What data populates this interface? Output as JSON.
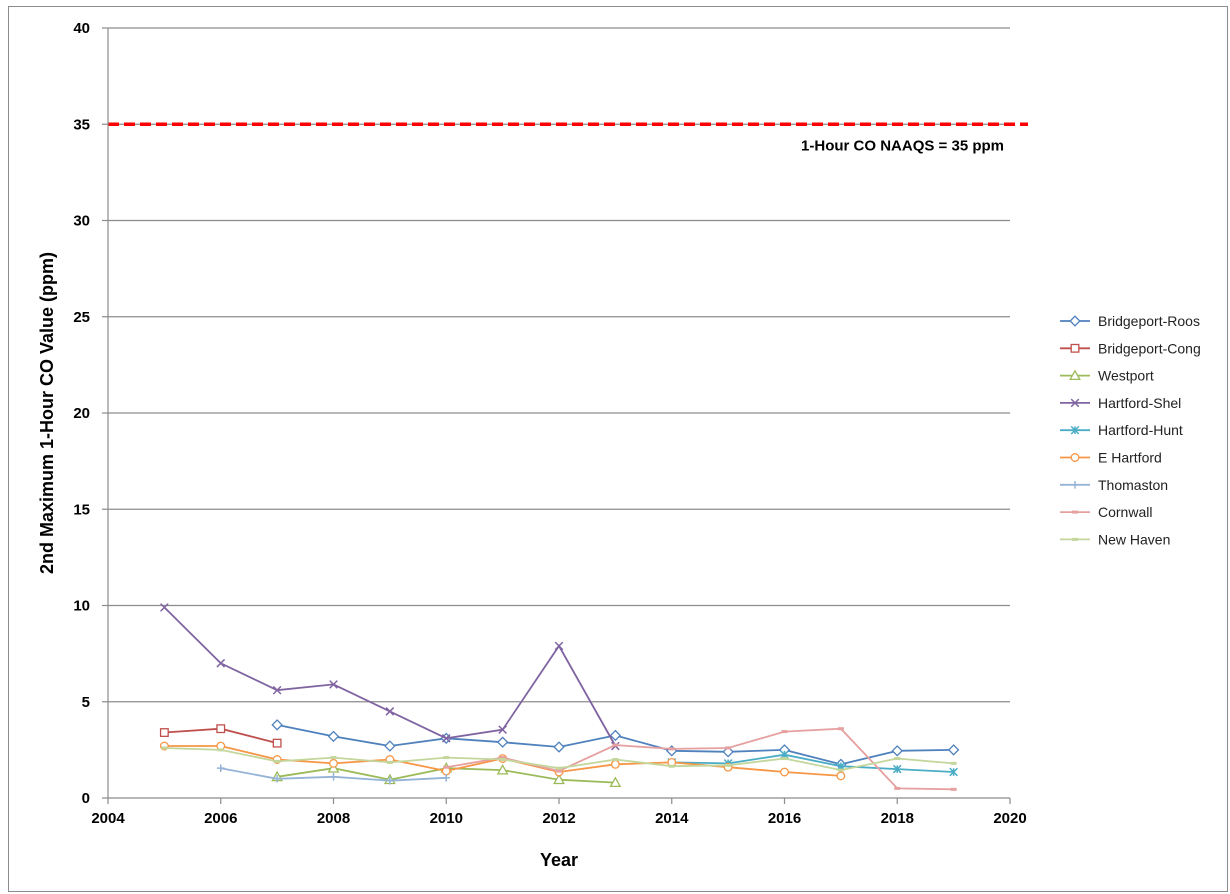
{
  "chart_data": {
    "type": "line",
    "title": "",
    "xlabel": "Year",
    "ylabel": "2nd Maximum 1-Hour CO Value (ppm)",
    "xlim": [
      2004,
      2020
    ],
    "ylim": [
      0,
      40
    ],
    "xticks": [
      2004,
      2006,
      2008,
      2010,
      2012,
      2014,
      2016,
      2018,
      2020
    ],
    "yticks": [
      0,
      5,
      10,
      15,
      20,
      25,
      30,
      35,
      40
    ],
    "grid": "horizontal",
    "legend_position": "right",
    "reference_line": {
      "value": 35,
      "label": "1-Hour CO NAAQS = 35 ppm",
      "color": "#ff0000",
      "style": "dashed"
    },
    "series": [
      {
        "name": "Bridgeport-Roos",
        "color": "#4f81bd",
        "marker": "diamond",
        "x": [
          2007,
          2008,
          2009,
          2010,
          2011,
          2012,
          2013,
          2014,
          2015,
          2016,
          2017,
          2018,
          2019
        ],
        "y": [
          3.8,
          3.2,
          2.7,
          3.1,
          2.9,
          2.65,
          3.25,
          2.45,
          2.4,
          2.5,
          1.75,
          2.45,
          2.5
        ]
      },
      {
        "name": "Bridgeport-Cong",
        "color": "#c0504d",
        "marker": "square",
        "x": [
          2005,
          2006,
          2007
        ],
        "y": [
          3.4,
          3.6,
          2.85
        ]
      },
      {
        "name": "Westport",
        "color": "#9bbb59",
        "marker": "triangle",
        "x": [
          2007,
          2008,
          2009,
          2010,
          2011,
          2012,
          2013
        ],
        "y": [
          1.1,
          1.55,
          0.95,
          1.55,
          1.45,
          0.95,
          0.8
        ]
      },
      {
        "name": "Hartford-Shel",
        "color": "#8064a2",
        "marker": "x",
        "x": [
          2005,
          2006,
          2007,
          2008,
          2009,
          2010,
          2011,
          2012,
          2013
        ],
        "y": [
          9.9,
          7.0,
          5.6,
          5.9,
          4.5,
          3.1,
          3.55,
          7.9,
          2.7
        ]
      },
      {
        "name": "Hartford-Hunt",
        "color": "#4bacc6",
        "marker": "star",
        "x": [
          2014,
          2015,
          2016,
          2017,
          2018,
          2019
        ],
        "y": [
          1.85,
          1.8,
          2.25,
          1.65,
          1.5,
          1.35
        ]
      },
      {
        "name": "E Hartford",
        "color": "#f79646",
        "marker": "circle",
        "x": [
          2005,
          2006,
          2007,
          2008,
          2009,
          2010,
          2011,
          2012,
          2013,
          2014,
          2015,
          2016,
          2017
        ],
        "y": [
          2.7,
          2.7,
          2.0,
          1.8,
          2.0,
          1.4,
          2.05,
          1.35,
          1.75,
          1.85,
          1.6,
          1.35,
          1.15
        ]
      },
      {
        "name": "Thomaston",
        "color": "#95b3d7",
        "marker": "plus",
        "x": [
          2006,
          2007,
          2008,
          2009,
          2010
        ],
        "y": [
          1.55,
          1.0,
          1.1,
          0.9,
          1.05
        ]
      },
      {
        "name": "Cornwall",
        "color": "#e6a0a0",
        "marker": "dash",
        "x": [
          2010,
          2011,
          2012,
          2013,
          2014,
          2015,
          2016,
          2017,
          2018,
          2019
        ],
        "y": [
          1.6,
          2.1,
          1.4,
          2.75,
          2.55,
          2.6,
          3.45,
          3.6,
          0.5,
          0.45
        ]
      },
      {
        "name": "New Haven",
        "color": "#c3d69b",
        "marker": "dash",
        "x": [
          2005,
          2006,
          2007,
          2008,
          2009,
          2010,
          2011,
          2012,
          2013,
          2014,
          2015,
          2016,
          2017,
          2018,
          2019
        ],
        "y": [
          2.6,
          2.5,
          1.9,
          2.1,
          1.85,
          2.1,
          2.0,
          1.55,
          2.0,
          1.65,
          1.7,
          2.05,
          1.45,
          2.05,
          1.8
        ]
      }
    ]
  }
}
